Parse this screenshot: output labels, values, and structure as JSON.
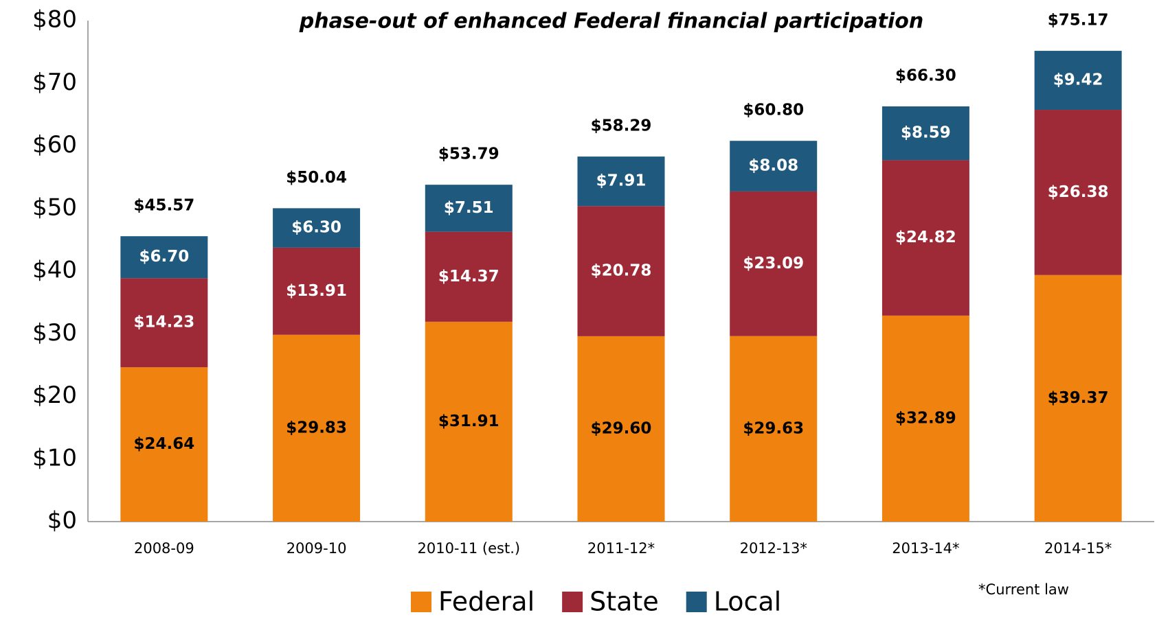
{
  "chart_data": {
    "type": "stacked_bar",
    "subtitle": "phase-out of enhanced Federal financial participation",
    "categories": [
      "2008-09",
      "2009-10",
      "2010-11 (est.)",
      "2011-12*",
      "2012-13*",
      "2013-14*",
      "2014-15*"
    ],
    "series": [
      {
        "name": "Federal",
        "color": "#f0820f",
        "values": [
          24.64,
          29.83,
          31.91,
          29.6,
          29.63,
          32.89,
          39.37
        ],
        "value_labels": [
          "$24.64",
          "$29.83",
          "$31.91",
          "$29.60",
          "$29.63",
          "$32.89",
          "$39.37"
        ]
      },
      {
        "name": "State",
        "color": "#9e2a38",
        "values": [
          14.23,
          13.91,
          14.37,
          20.78,
          23.09,
          24.82,
          26.38
        ],
        "value_labels": [
          "$14.23",
          "$13.91",
          "$14.37",
          "$20.78",
          "$23.09",
          "$24.82",
          "$26.38"
        ]
      },
      {
        "name": "Local",
        "color": "#1f5a7e",
        "values": [
          6.7,
          6.3,
          7.51,
          7.91,
          8.08,
          8.59,
          9.42
        ],
        "value_labels": [
          "$6.70",
          "$6.30",
          "$7.51",
          "$7.91",
          "$8.08",
          "$8.59",
          "$9.42"
        ]
      }
    ],
    "totals": [
      45.57,
      50.04,
      53.79,
      58.29,
      60.8,
      66.3,
      75.17
    ],
    "total_labels": [
      "$45.57",
      "$50.04",
      "$53.79",
      "$58.29",
      "$60.80",
      "$66.30",
      "$75.17"
    ],
    "ylim": [
      0,
      80
    ],
    "yticks": [
      {
        "value": 0,
        "label": "$0"
      },
      {
        "value": 10,
        "label": "$10"
      },
      {
        "value": 20,
        "label": "$20"
      },
      {
        "value": 30,
        "label": "$30"
      },
      {
        "value": 40,
        "label": "$40"
      },
      {
        "value": 50,
        "label": "$50"
      },
      {
        "value": 60,
        "label": "$60"
      },
      {
        "value": 70,
        "label": "$70"
      },
      {
        "value": 80,
        "label": "$80"
      }
    ],
    "footnote": "*Current law"
  }
}
